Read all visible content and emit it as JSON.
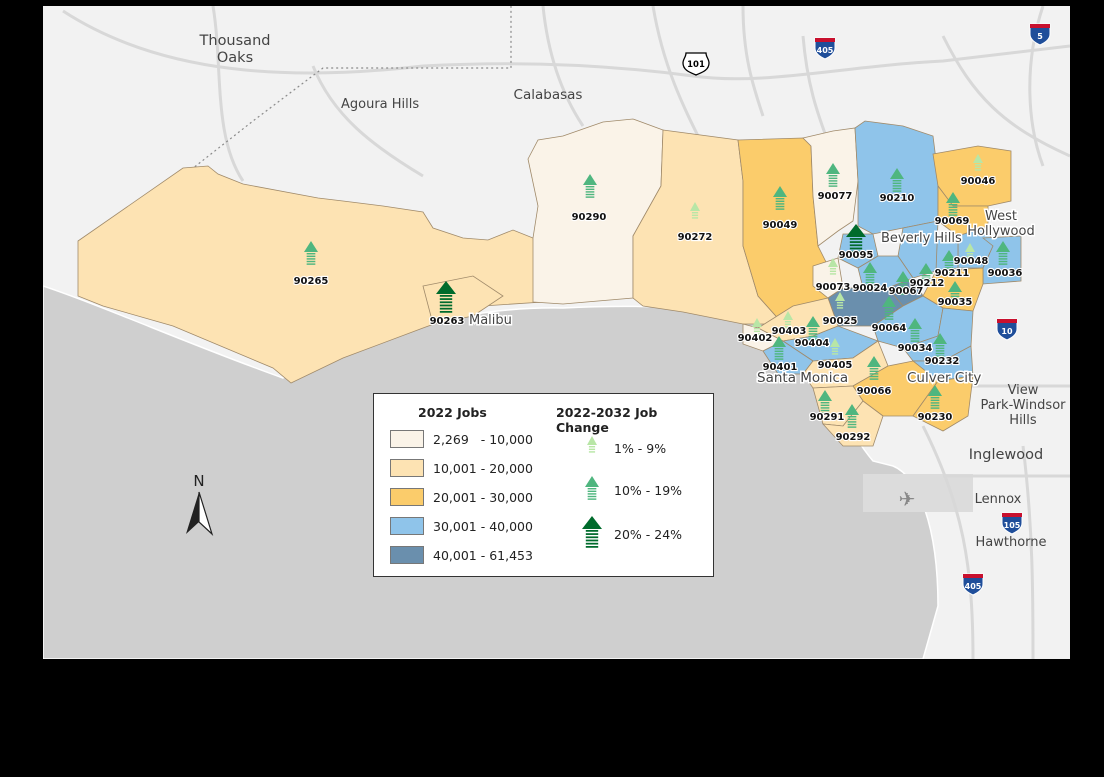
{
  "colors": {
    "land": "#f2f2f2",
    "ocean": "#cfcfcf",
    "roads": "#d8d8d8",
    "class1": "#faf3e8",
    "class2": "#fde3b3",
    "class3": "#fbcc6b",
    "class4": "#8fc4ea",
    "class5": "#6a8fad",
    "arrow_small": "#b8e6a6",
    "arrow_mid": "#4fb67f",
    "arrow_large": "#006b2c"
  },
  "places": [
    {
      "name": "Thousand"
    },
    {
      "name": "Oaks"
    },
    {
      "name": "Agoura Hills"
    },
    {
      "name": "Calabasas"
    },
    {
      "name": "Malibu"
    },
    {
      "name": "Beverly Hills"
    },
    {
      "name": "West"
    },
    {
      "name": "Hollywood"
    },
    {
      "name": "Santa Monica"
    },
    {
      "name": "Culver City"
    },
    {
      "name": "View"
    },
    {
      "name": "Park-Windsor"
    },
    {
      "name": "Hills"
    },
    {
      "name": "Inglewood"
    },
    {
      "name": "Lennox"
    },
    {
      "name": "Hawthorne"
    }
  ],
  "highways": [
    "405",
    "101",
    "5",
    "10",
    "105",
    "405"
  ],
  "zip_areas": [
    {
      "zip": "90265",
      "jobs_class": 2,
      "change_class": "mid"
    },
    {
      "zip": "90263",
      "jobs_class": 2,
      "change_class": "large"
    },
    {
      "zip": "90290",
      "jobs_class": 1,
      "change_class": "mid"
    },
    {
      "zip": "90272",
      "jobs_class": 2,
      "change_class": "small"
    },
    {
      "zip": "90049",
      "jobs_class": 3,
      "change_class": "mid"
    },
    {
      "zip": "90077",
      "jobs_class": 1,
      "change_class": "mid"
    },
    {
      "zip": "90210",
      "jobs_class": 4,
      "change_class": "mid"
    },
    {
      "zip": "90046",
      "jobs_class": 3,
      "change_class": "small"
    },
    {
      "zip": "90069",
      "jobs_class": 3,
      "change_class": "mid"
    },
    {
      "zip": "90095",
      "jobs_class": 4,
      "change_class": "large"
    },
    {
      "zip": "90048",
      "jobs_class": 4,
      "change_class": "small"
    },
    {
      "zip": "90036",
      "jobs_class": 4,
      "change_class": "mid"
    },
    {
      "zip": "90211",
      "jobs_class": 4,
      "change_class": "mid"
    },
    {
      "zip": "90212",
      "jobs_class": 4,
      "change_class": "mid"
    },
    {
      "zip": "90073",
      "jobs_class": 1,
      "change_class": "small"
    },
    {
      "zip": "90024",
      "jobs_class": 4,
      "change_class": "mid"
    },
    {
      "zip": "90067",
      "jobs_class": 5,
      "change_class": "mid"
    },
    {
      "zip": "90035",
      "jobs_class": 3,
      "change_class": "mid"
    },
    {
      "zip": "90025",
      "jobs_class": 5,
      "change_class": "small"
    },
    {
      "zip": "90064",
      "jobs_class": 4,
      "change_class": "mid"
    },
    {
      "zip": "90403",
      "jobs_class": 2,
      "change_class": "small"
    },
    {
      "zip": "90402",
      "jobs_class": 1,
      "change_class": "small"
    },
    {
      "zip": "90404",
      "jobs_class": 4,
      "change_class": "mid"
    },
    {
      "zip": "90401",
      "jobs_class": 4,
      "change_class": "mid"
    },
    {
      "zip": "90034",
      "jobs_class": 4,
      "change_class": "mid"
    },
    {
      "zip": "90405",
      "jobs_class": 2,
      "change_class": "small"
    },
    {
      "zip": "90232",
      "jobs_class": 4,
      "change_class": "mid"
    },
    {
      "zip": "90066",
      "jobs_class": 3,
      "change_class": "mid"
    },
    {
      "zip": "90291",
      "jobs_class": 2,
      "change_class": "mid"
    },
    {
      "zip": "90230",
      "jobs_class": 3,
      "change_class": "mid"
    },
    {
      "zip": "90292",
      "jobs_class": 2,
      "change_class": "mid"
    }
  ],
  "legend": {
    "jobs_title": "2022 Jobs",
    "jobs_classes": [
      {
        "range": "2,269   - 10,000",
        "color": "#faf3e8"
      },
      {
        "range": "10,001 - 20,000",
        "color": "#fde3b3"
      },
      {
        "range": "20,001 - 30,000",
        "color": "#fbcc6b"
      },
      {
        "range": "30,001 - 40,000",
        "color": "#8fc4ea"
      },
      {
        "range": "40,001 - 61,453",
        "color": "#6a8fad"
      }
    ],
    "change_title": "2022-2032 Job Change",
    "change_classes": [
      {
        "range": "1% - 9%",
        "arrow": "small"
      },
      {
        "range": "10% - 19%",
        "arrow": "mid"
      },
      {
        "range": "20% - 24%",
        "arrow": "large"
      }
    ]
  },
  "north_arrow": {
    "label": "N",
    "icon": "north-arrow-icon"
  }
}
